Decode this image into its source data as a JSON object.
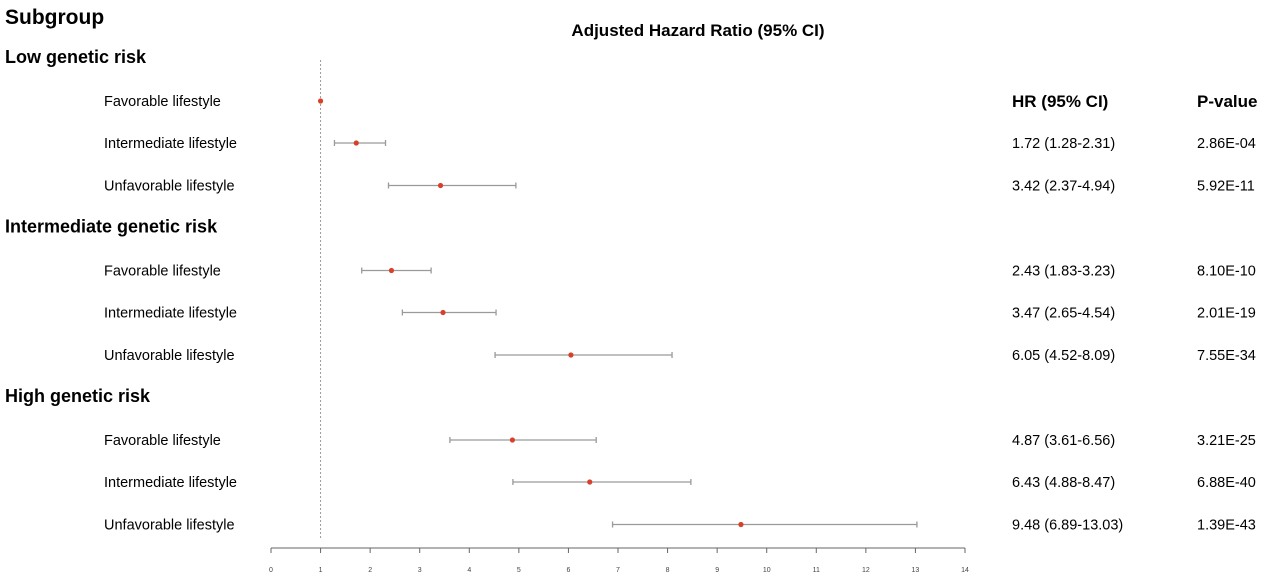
{
  "colors": {
    "point": "#d9402b",
    "ci_line": "#9a9a9a",
    "reference_line": "#999999",
    "axis": "#666666",
    "text": "#111111"
  },
  "chart_data": {
    "type": "forest",
    "title": "Adjusted Hazard Ratio (95% CI)",
    "row_header": "Subgroup",
    "columns": [
      "HR (95% CI)",
      "P-value"
    ],
    "xlim": [
      0,
      14
    ],
    "xticks": [
      0,
      1,
      2,
      3,
      4,
      5,
      6,
      7,
      8,
      9,
      10,
      11,
      12,
      13,
      14
    ],
    "reference_value": 1,
    "groups": [
      {
        "label": "Low genetic risk",
        "rows": [
          {
            "label": "Favorable lifestyle",
            "hr": 1,
            "lower": 1,
            "upper": 1,
            "hr_text": "",
            "p_text": ""
          },
          {
            "label": "Intermediate lifestyle",
            "hr": 1.72,
            "lower": 1.28,
            "upper": 2.31,
            "hr_text": "1.72 (1.28-2.31)",
            "p_text": "2.86E-04"
          },
          {
            "label": "Unfavorable lifestyle",
            "hr": 3.42,
            "lower": 2.37,
            "upper": 4.94,
            "hr_text": "3.42 (2.37-4.94)",
            "p_text": "5.92E-11"
          }
        ]
      },
      {
        "label": "Intermediate genetic risk",
        "rows": [
          {
            "label": "Favorable lifestyle",
            "hr": 2.43,
            "lower": 1.83,
            "upper": 3.23,
            "hr_text": "2.43 (1.83-3.23)",
            "p_text": "8.10E-10"
          },
          {
            "label": "Intermediate lifestyle",
            "hr": 3.47,
            "lower": 2.65,
            "upper": 4.54,
            "hr_text": "3.47 (2.65-4.54)",
            "p_text": "2.01E-19"
          },
          {
            "label": "Unfavorable lifestyle",
            "hr": 6.05,
            "lower": 4.52,
            "upper": 8.09,
            "hr_text": "6.05 (4.52-8.09)",
            "p_text": "7.55E-34"
          }
        ]
      },
      {
        "label": "High genetic risk",
        "rows": [
          {
            "label": "Favorable lifestyle",
            "hr": 4.87,
            "lower": 3.61,
            "upper": 6.56,
            "hr_text": "4.87 (3.61-6.56)",
            "p_text": "3.21E-25"
          },
          {
            "label": "Intermediate lifestyle",
            "hr": 6.43,
            "lower": 4.88,
            "upper": 8.47,
            "hr_text": "6.43 (4.88-8.47)",
            "p_text": "6.88E-40"
          },
          {
            "label": "Unfavorable lifestyle",
            "hr": 9.48,
            "lower": 6.89,
            "upper": 13.03,
            "hr_text": "9.48 (6.89-13.03)",
            "p_text": "1.39E-43"
          }
        ]
      }
    ]
  }
}
